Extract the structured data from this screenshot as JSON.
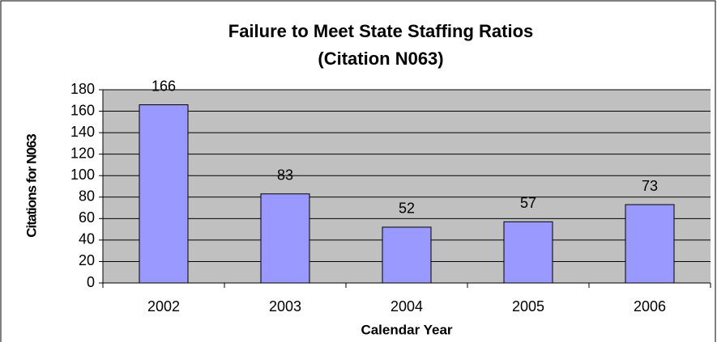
{
  "chart_data": {
    "type": "bar",
    "title": "Failure to Meet State Staffing Ratios",
    "subtitle": "(Citation  N063)",
    "x_label": "Calendar Year",
    "y_label": "Citations for N063",
    "categories": [
      "2002",
      "2003",
      "2004",
      "2005",
      "2006"
    ],
    "values": [
      166,
      83,
      52,
      57,
      73
    ],
    "color": "#9999ff",
    "ylim": [
      0,
      180
    ],
    "yticks": [
      0,
      20,
      40,
      60,
      80,
      100,
      120,
      140,
      160,
      180
    ],
    "grid": true
  }
}
